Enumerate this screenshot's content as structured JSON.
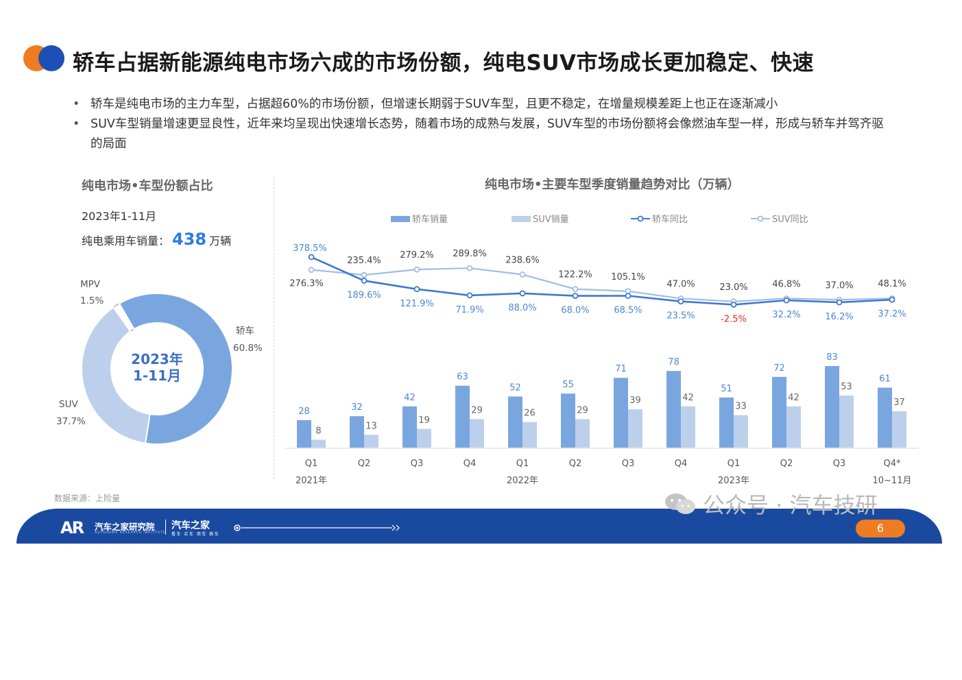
{
  "title": "轿车占据新能源纯电市场六成的市场份额，纯电SUV市场成长更加稳定、快速",
  "bullets": [
    "轿车是纯电市场的主力车型，占据超60%的市场份额，但增速长期弱于SUV车型，且更不稳定，在增量规模差距上也正在逐渐减小",
    "SUV车型销量增速更显良性，近年来均呈现出快速增长态势，随着市场的成熟与发展，SUV车型的市场份额将会像燃油车型一样，形成与轿车并驾齐驱的局面"
  ],
  "left_panel": {
    "title": "纯电市场•车型份额占比",
    "period": "2023年1-11月",
    "total_prefix": "纯电乘用车销量：",
    "total_value": "438",
    "total_unit": "万辆",
    "center_line1": "2023年",
    "center_line2": "1-11月"
  },
  "right_panel": {
    "title": "纯电市场•主要车型季度销量趋势对比（万辆）"
  },
  "source": "数据来源：上险量",
  "watermark": "公众号 · 汽车技研",
  "footer": {
    "logo": "AR",
    "org": "汽车之家研究院",
    "org_sub": "AUTOHOME RESEARCH INSTITUTE",
    "brand": "汽车之家",
    "brand_sub": "看车 买车 用车 换车",
    "page": "6"
  },
  "colors": {
    "sedan": "#7aa6e0",
    "sedan_line": "#3d78d0",
    "suv": "#bcd0ec",
    "suv_line": "#9fbde6",
    "mpv": "#ffffff",
    "negative": "#e0291b",
    "accent_orange": "#f07c21",
    "accent_blue": "#1d4fb6"
  },
  "chart_data": [
    {
      "type": "pie",
      "title": "纯电市场•车型份额占比",
      "labels": [
        "轿车",
        "SUV",
        "MPV"
      ],
      "values": [
        60.8,
        37.7,
        1.5
      ],
      "value_labels": [
        "60.8%",
        "37.7%",
        "1.5%"
      ],
      "donut": true
    },
    {
      "type": "bar",
      "title": "纯电市场•主要车型季度销量趋势对比（万辆）",
      "categories": [
        "Q1",
        "Q2",
        "Q3",
        "Q4",
        "Q1",
        "Q2",
        "Q3",
        "Q4",
        "Q1",
        "Q2",
        "Q3",
        "Q4*"
      ],
      "year_labels": [
        {
          "index": 0,
          "label": "2021年"
        },
        {
          "index": 4,
          "label": "2022年"
        },
        {
          "index": 8,
          "label": "2023年"
        },
        {
          "index": 11,
          "label": "10~11月"
        }
      ],
      "series": [
        {
          "name": "轿车销量",
          "kind": "bar",
          "values": [
            28,
            32,
            42,
            63,
            52,
            55,
            71,
            78,
            51,
            72,
            83,
            61
          ]
        },
        {
          "name": "SUV销量",
          "kind": "bar",
          "values": [
            8,
            13,
            19,
            29,
            26,
            29,
            39,
            42,
            33,
            42,
            53,
            37
          ]
        },
        {
          "name": "轿车同比",
          "kind": "line",
          "values": [
            378.5,
            189.6,
            121.9,
            71.9,
            88.0,
            68.0,
            68.5,
            23.5,
            -2.5,
            32.2,
            16.2,
            37.2
          ],
          "labels": [
            "378.5%",
            "189.6%",
            "121.9%",
            "71.9%",
            "88.0%",
            "68.0%",
            "68.5%",
            "23.5%",
            "-2.5%",
            "32.2%",
            "16.2%",
            "37.2%"
          ]
        },
        {
          "name": "SUV同比",
          "kind": "line",
          "values": [
            276.3,
            235.4,
            279.2,
            289.8,
            238.6,
            122.2,
            105.1,
            47.0,
            23.0,
            46.8,
            37.0,
            48.1
          ],
          "labels": [
            "276.3%",
            "235.4%",
            "279.2%",
            "289.8%",
            "238.6%",
            "122.2%",
            "105.1%",
            "47.0%",
            "23.0%",
            "46.8%",
            "37.0%",
            "48.1%"
          ]
        }
      ],
      "legend_position": "top",
      "grid": false
    }
  ]
}
